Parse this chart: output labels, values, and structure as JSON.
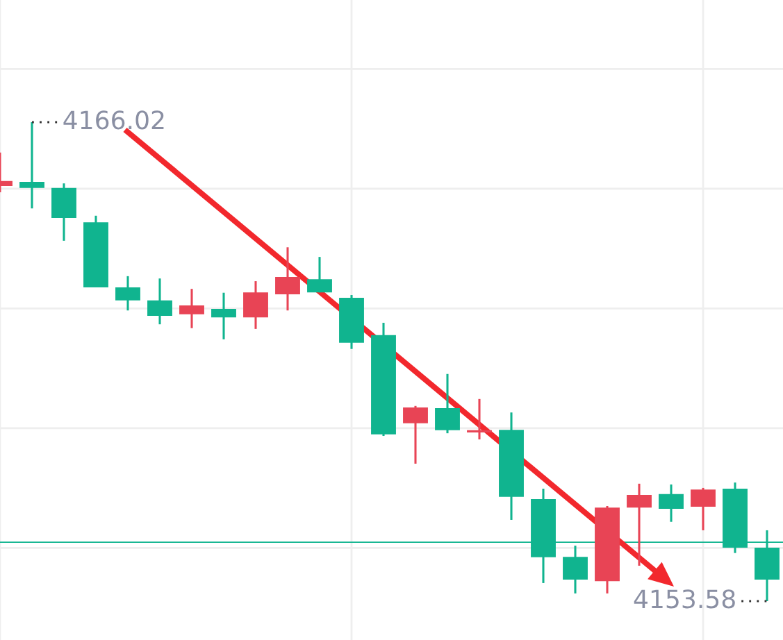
{
  "chart_data": {
    "type": "candlestick",
    "categories": [
      null,
      null,
      null,
      null,
      null,
      null,
      null,
      null,
      null,
      null,
      null,
      null,
      null,
      null,
      null,
      null,
      null,
      null,
      null,
      null,
      null,
      null,
      null,
      null,
      null
    ],
    "ohlc": [
      [
        4164.36,
        4165.23,
        4164.2,
        4164.49
      ],
      [
        4164.47,
        4166.02,
        4163.78,
        4164.31
      ],
      [
        4164.31,
        4164.43,
        4162.94,
        4163.53
      ],
      [
        4163.42,
        4163.59,
        4161.73,
        4161.73
      ],
      [
        4161.73,
        4162.02,
        4161.13,
        4161.39
      ],
      [
        4161.39,
        4161.96,
        4160.77,
        4160.99
      ],
      [
        4161.03,
        4161.69,
        4160.67,
        4161.26
      ],
      [
        4161.17,
        4161.59,
        4160.38,
        4160.95
      ],
      [
        4160.95,
        4161.89,
        4160.65,
        4161.6
      ],
      [
        4161.55,
        4162.77,
        4161.13,
        4162.0
      ],
      [
        4161.94,
        4162.52,
        4161.6,
        4161.6
      ],
      [
        4161.46,
        4161.53,
        4160.13,
        4160.29
      ],
      [
        4160.49,
        4160.81,
        4157.87,
        4157.91
      ],
      [
        4158.2,
        4158.65,
        4157.15,
        4158.61
      ],
      [
        4158.59,
        4159.48,
        4157.94,
        4158.02
      ],
      [
        4157.96,
        4158.83,
        4157.78,
        4158.02
      ],
      [
        4158.03,
        4158.48,
        4155.69,
        4156.29
      ],
      [
        4156.23,
        4156.5,
        4154.05,
        4154.72
      ],
      [
        4154.73,
        4155.02,
        4153.78,
        4154.14
      ],
      [
        4154.1,
        4156.05,
        4153.78,
        4156.01
      ],
      [
        4156.01,
        4156.63,
        4154.5,
        4156.34
      ],
      [
        4156.36,
        4156.61,
        4155.64,
        4155.98
      ],
      [
        4156.03,
        4156.52,
        4155.42,
        4156.48
      ],
      [
        4156.5,
        4156.66,
        4154.83,
        4154.97
      ],
      [
        4154.97,
        4155.42,
        4153.58,
        4154.14
      ]
    ],
    "colors": [
      "#e84455",
      "#10b48f",
      "#10b48f",
      "#10b48f",
      "#10b48f",
      "#10b48f",
      "#e84455",
      "#10b48f",
      "#e84455",
      "#e84455",
      "#10b48f",
      "#10b48f",
      "#10b48f",
      "#e84455",
      "#10b48f",
      "#e84455",
      "#10b48f",
      "#10b48f",
      "#10b48f",
      "#e84455",
      "#e84455",
      "#10b48f",
      "#e84455",
      "#10b48f",
      "#10b48f"
    ],
    "annotations": [
      "4166.02",
      "4153.58"
    ],
    "ref_lines": [
      {
        "axis": "y",
        "value": 4155.11,
        "color": "#10b48f"
      }
    ],
    "grid": true,
    "tick_labels": false
  }
}
